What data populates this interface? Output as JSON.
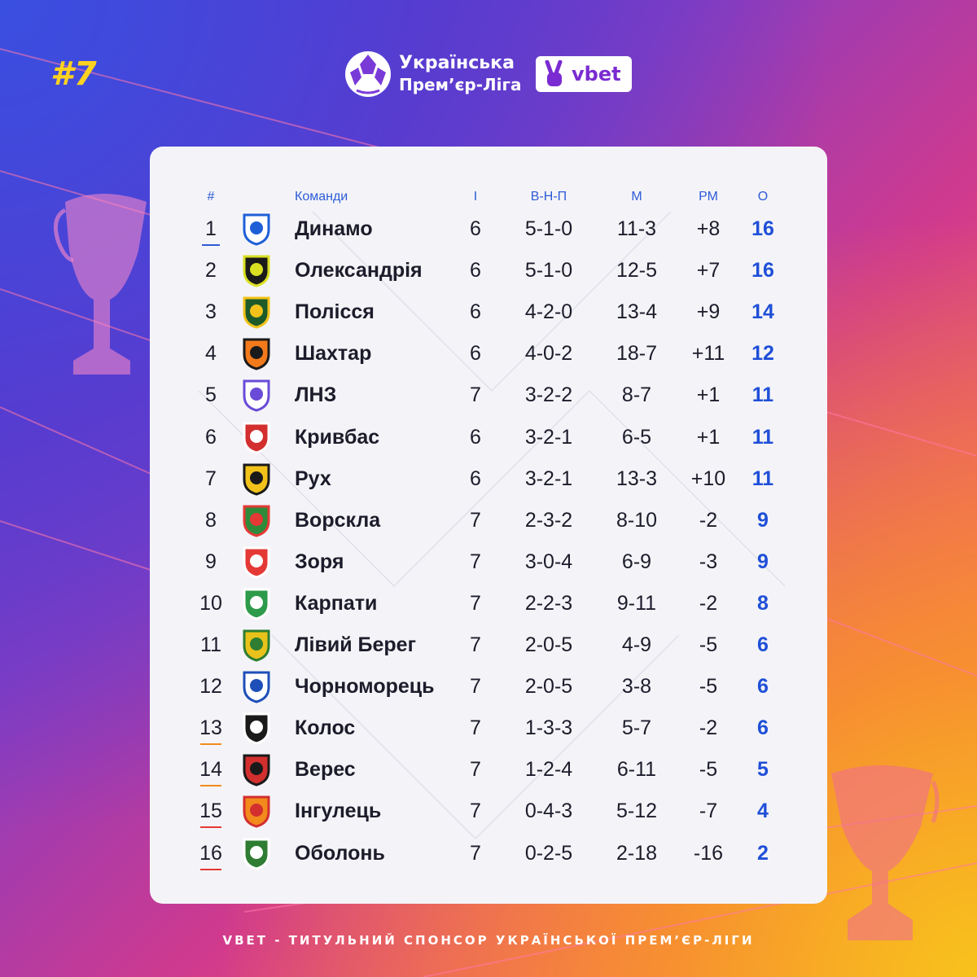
{
  "header": {
    "week": "#7",
    "league_line1": "Українська",
    "league_line2": "Прем’єр-Ліга",
    "sponsor": "vbet"
  },
  "table": {
    "columns": {
      "pos": "#",
      "team": "Команди",
      "games": "І",
      "wdl": "В-Н-П",
      "goals": "М",
      "gd": "РМ",
      "points": "О"
    },
    "rows": [
      {
        "pos": "1",
        "team": "Динамо",
        "games": "6",
        "wdl": "5-1-0",
        "goals": "11-3",
        "gd": "+8",
        "points": "16",
        "zone": "blue",
        "crest": "dynamo-crest-icon"
      },
      {
        "pos": "2",
        "team": "Олександрія",
        "games": "6",
        "wdl": "5-1-0",
        "goals": "12-5",
        "gd": "+7",
        "points": "16",
        "zone": "",
        "crest": "oleksandriya-crest-icon"
      },
      {
        "pos": "3",
        "team": "Полісся",
        "games": "6",
        "wdl": "4-2-0",
        "goals": "13-4",
        "gd": "+9",
        "points": "14",
        "zone": "",
        "crest": "polissya-crest-icon"
      },
      {
        "pos": "4",
        "team": "Шахтар",
        "games": "6",
        "wdl": "4-0-2",
        "goals": "18-7",
        "gd": "+11",
        "points": "12",
        "zone": "",
        "crest": "shakhtar-crest-icon"
      },
      {
        "pos": "5",
        "team": "ЛНЗ",
        "games": "7",
        "wdl": "3-2-2",
        "goals": "8-7",
        "gd": "+1",
        "points": "11",
        "zone": "",
        "crest": "lnz-crest-icon"
      },
      {
        "pos": "6",
        "team": "Кривбас",
        "games": "6",
        "wdl": "3-2-1",
        "goals": "6-5",
        "gd": "+1",
        "points": "11",
        "zone": "",
        "crest": "kryvbas-crest-icon"
      },
      {
        "pos": "7",
        "team": "Рух",
        "games": "6",
        "wdl": "3-2-1",
        "goals": "13-3",
        "gd": "+10",
        "points": "11",
        "zone": "",
        "crest": "rukh-crest-icon"
      },
      {
        "pos": "8",
        "team": "Ворскла",
        "games": "7",
        "wdl": "2-3-2",
        "goals": "8-10",
        "gd": "-2",
        "points": "9",
        "zone": "",
        "crest": "vorskla-crest-icon"
      },
      {
        "pos": "9",
        "team": "Зоря",
        "games": "7",
        "wdl": "3-0-4",
        "goals": "6-9",
        "gd": "-3",
        "points": "9",
        "zone": "",
        "crest": "zorya-crest-icon"
      },
      {
        "pos": "10",
        "team": "Карпати",
        "games": "7",
        "wdl": "2-2-3",
        "goals": "9-11",
        "gd": "-2",
        "points": "8",
        "zone": "",
        "crest": "karpaty-crest-icon"
      },
      {
        "pos": "11",
        "team": "Лівий Берег",
        "games": "7",
        "wdl": "2-0-5",
        "goals": "4-9",
        "gd": "-5",
        "points": "6",
        "zone": "",
        "crest": "liviy-bereh-crest-icon"
      },
      {
        "pos": "12",
        "team": "Чорноморець",
        "games": "7",
        "wdl": "2-0-5",
        "goals": "3-8",
        "gd": "-5",
        "points": "6",
        "zone": "",
        "crest": "chornomorets-crest-icon"
      },
      {
        "pos": "13",
        "team": "Колос",
        "games": "7",
        "wdl": "1-3-3",
        "goals": "5-7",
        "gd": "-2",
        "points": "6",
        "zone": "orange",
        "crest": "kolos-crest-icon"
      },
      {
        "pos": "14",
        "team": "Верес",
        "games": "7",
        "wdl": "1-2-4",
        "goals": "6-11",
        "gd": "-5",
        "points": "5",
        "zone": "orange",
        "crest": "veres-crest-icon"
      },
      {
        "pos": "15",
        "team": "Інгулець",
        "games": "7",
        "wdl": "0-4-3",
        "goals": "5-12",
        "gd": "-7",
        "points": "4",
        "zone": "red",
        "crest": "inhulets-crest-icon"
      },
      {
        "pos": "16",
        "team": "Оболонь",
        "games": "7",
        "wdl": "0-2-5",
        "goals": "2-18",
        "gd": "-16",
        "points": "2",
        "zone": "red",
        "crest": "obolon-crest-icon"
      }
    ]
  },
  "footer": {
    "text": "VBET - ТИТУЛЬНИЙ СПОНСОР УКРАЇНСЬКОЇ ПРЕМ’ЄР-ЛІГИ"
  },
  "colors": {
    "points": "#1f4fd8",
    "zone_blue": "#2d5bd6",
    "zone_orange": "#f28a1c",
    "zone_red": "#e53935",
    "week": "#ffd21f"
  }
}
